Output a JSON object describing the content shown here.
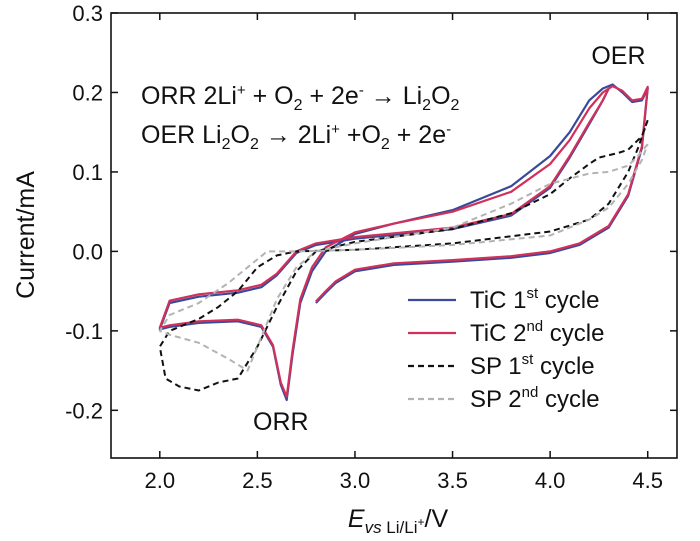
{
  "chart_data": {
    "type": "line",
    "xlabel_main": "E",
    "xlabel_sub": "vs Li/Li+",
    "xlabel_unit": "/V",
    "ylabel": "Current/mA",
    "xlim": [
      1.75,
      4.65
    ],
    "ylim": [
      -0.26,
      0.3
    ],
    "x_ticks": [
      "2.0",
      "2.5",
      "3.0",
      "3.5",
      "4.0",
      "4.5"
    ],
    "y_ticks": [
      "-0.2",
      "-0.1",
      "0.0",
      "0.1",
      "0.2",
      "0.3"
    ],
    "grid": false,
    "legend_position": "bottom-right",
    "equations": [
      {
        "label": "ORR",
        "lhs": "2Li+ + O2 + 2e-",
        "arrow": "→",
        "rhs": "Li2O2"
      },
      {
        "label": "OER",
        "lhs": "Li2O2",
        "arrow": "→",
        "rhs": "2Li+ +O2 + 2e-"
      }
    ],
    "annotations": [
      {
        "text": "OER",
        "x": 4.35,
        "y": 0.236
      },
      {
        "text": "ORR",
        "x": 2.62,
        "y": -0.225
      }
    ],
    "series": [
      {
        "name": "TiC 1st cycle",
        "name_base": "TiC 1",
        "name_sup": "st",
        "name_tail": " cycle",
        "color": "#3a4a9a",
        "dash": "solid",
        "points": [
          [
            2.8,
            -0.065
          ],
          [
            2.85,
            -0.052
          ],
          [
            2.9,
            -0.04
          ],
          [
            3.0,
            -0.025
          ],
          [
            3.2,
            -0.017
          ],
          [
            3.5,
            -0.013
          ],
          [
            3.8,
            -0.008
          ],
          [
            4.0,
            -0.002
          ],
          [
            4.15,
            0.008
          ],
          [
            4.3,
            0.03
          ],
          [
            4.4,
            0.07
          ],
          [
            4.47,
            0.13
          ],
          [
            4.5,
            0.205
          ],
          [
            4.47,
            0.19
          ],
          [
            4.42,
            0.188
          ],
          [
            4.37,
            0.2
          ],
          [
            4.32,
            0.21
          ],
          [
            4.27,
            0.205
          ],
          [
            4.2,
            0.19
          ],
          [
            4.1,
            0.15
          ],
          [
            4.0,
            0.12
          ],
          [
            3.8,
            0.082
          ],
          [
            3.5,
            0.052
          ],
          [
            3.2,
            0.035
          ],
          [
            3.0,
            0.022
          ],
          [
            2.85,
            0.0
          ],
          [
            2.78,
            -0.025
          ],
          [
            2.72,
            -0.065
          ],
          [
            2.68,
            -0.13
          ],
          [
            2.65,
            -0.187
          ],
          [
            2.62,
            -0.168
          ],
          [
            2.58,
            -0.12
          ],
          [
            2.52,
            -0.095
          ],
          [
            2.4,
            -0.088
          ],
          [
            2.2,
            -0.09
          ],
          [
            2.05,
            -0.095
          ],
          [
            2.0,
            -0.098
          ],
          [
            2.05,
            -0.065
          ],
          [
            2.2,
            -0.057
          ],
          [
            2.4,
            -0.052
          ],
          [
            2.52,
            -0.045
          ],
          [
            2.6,
            -0.03
          ],
          [
            2.7,
            -0.002
          ],
          [
            2.8,
            0.008
          ],
          [
            3.0,
            0.016
          ],
          [
            3.5,
            0.028
          ],
          [
            3.8,
            0.045
          ],
          [
            4.0,
            0.08
          ],
          [
            4.1,
            0.118
          ],
          [
            4.2,
            0.16
          ],
          [
            4.27,
            0.19
          ],
          [
            4.3,
            0.205
          ]
        ]
      },
      {
        "name": "TiC 2nd cycle",
        "name_base": "TiC 2",
        "name_sup": "nd",
        "name_tail": " cycle",
        "color": "#d0305a",
        "dash": "solid",
        "points": [
          [
            2.8,
            -0.063
          ],
          [
            2.85,
            -0.05
          ],
          [
            2.9,
            -0.038
          ],
          [
            3.0,
            -0.023
          ],
          [
            3.2,
            -0.015
          ],
          [
            3.5,
            -0.011
          ],
          [
            3.8,
            -0.006
          ],
          [
            4.0,
            0.0
          ],
          [
            4.15,
            0.01
          ],
          [
            4.3,
            0.032
          ],
          [
            4.4,
            0.072
          ],
          [
            4.47,
            0.132
          ],
          [
            4.5,
            0.207
          ],
          [
            4.47,
            0.192
          ],
          [
            4.42,
            0.19
          ],
          [
            4.37,
            0.202
          ],
          [
            4.32,
            0.208
          ],
          [
            4.27,
            0.2
          ],
          [
            4.2,
            0.18
          ],
          [
            4.1,
            0.14
          ],
          [
            4.0,
            0.11
          ],
          [
            3.8,
            0.075
          ],
          [
            3.5,
            0.05
          ],
          [
            3.2,
            0.035
          ],
          [
            3.0,
            0.024
          ],
          [
            2.85,
            0.005
          ],
          [
            2.78,
            -0.02
          ],
          [
            2.72,
            -0.06
          ],
          [
            2.68,
            -0.125
          ],
          [
            2.65,
            -0.183
          ],
          [
            2.62,
            -0.165
          ],
          [
            2.58,
            -0.118
          ],
          [
            2.52,
            -0.093
          ],
          [
            2.4,
            -0.086
          ],
          [
            2.2,
            -0.088
          ],
          [
            2.05,
            -0.093
          ],
          [
            2.0,
            -0.096
          ],
          [
            2.05,
            -0.062
          ],
          [
            2.2,
            -0.054
          ],
          [
            2.4,
            -0.049
          ],
          [
            2.52,
            -0.042
          ],
          [
            2.6,
            -0.028
          ],
          [
            2.7,
            0.0
          ],
          [
            2.8,
            0.01
          ],
          [
            3.0,
            0.018
          ],
          [
            3.5,
            0.03
          ],
          [
            3.8,
            0.047
          ],
          [
            4.0,
            0.082
          ],
          [
            4.1,
            0.12
          ],
          [
            4.2,
            0.162
          ],
          [
            4.27,
            0.19
          ],
          [
            4.3,
            0.205
          ]
        ]
      },
      {
        "name": "SP 1st cycle",
        "name_base": "SP 1",
        "name_sup": "st",
        "name_tail": " cycle",
        "color": "#111111",
        "dash": "dashed",
        "points": [
          [
            4.5,
            0.165
          ],
          [
            4.47,
            0.145
          ],
          [
            4.4,
            0.128
          ],
          [
            4.35,
            0.124
          ],
          [
            4.25,
            0.118
          ],
          [
            4.2,
            0.11
          ],
          [
            4.1,
            0.092
          ],
          [
            4.0,
            0.072
          ],
          [
            3.8,
            0.048
          ],
          [
            3.5,
            0.028
          ],
          [
            3.0,
            0.012
          ],
          [
            2.8,
            0.0
          ],
          [
            2.7,
            -0.025
          ],
          [
            2.6,
            -0.07
          ],
          [
            2.5,
            -0.12
          ],
          [
            2.4,
            -0.16
          ],
          [
            2.3,
            -0.165
          ],
          [
            2.2,
            -0.175
          ],
          [
            2.1,
            -0.17
          ],
          [
            2.03,
            -0.16
          ],
          [
            2.0,
            -0.12
          ],
          [
            2.05,
            -0.1
          ],
          [
            2.2,
            -0.085
          ],
          [
            2.3,
            -0.07
          ],
          [
            2.4,
            -0.05
          ],
          [
            2.5,
            -0.02
          ],
          [
            2.6,
            -0.005
          ],
          [
            2.7,
            0.0
          ],
          [
            3.0,
            0.002
          ],
          [
            3.5,
            0.01
          ],
          [
            4.0,
            0.025
          ],
          [
            4.2,
            0.04
          ],
          [
            4.3,
            0.06
          ],
          [
            4.4,
            0.1
          ],
          [
            4.45,
            0.13
          ],
          [
            4.5,
            0.165
          ]
        ]
      },
      {
        "name": "SP 2nd cycle",
        "name_base": "SP 2",
        "name_sup": "nd",
        "name_tail": " cycle",
        "color": "#b3b3b3",
        "dash": "dashed",
        "points": [
          [
            4.5,
            0.135
          ],
          [
            4.45,
            0.12
          ],
          [
            4.4,
            0.108
          ],
          [
            4.3,
            0.1
          ],
          [
            4.2,
            0.098
          ],
          [
            4.0,
            0.085
          ],
          [
            3.8,
            0.06
          ],
          [
            3.5,
            0.03
          ],
          [
            3.0,
            0.01
          ],
          [
            2.8,
            0.0
          ],
          [
            2.7,
            -0.02
          ],
          [
            2.6,
            -0.06
          ],
          [
            2.5,
            -0.12
          ],
          [
            2.45,
            -0.15
          ],
          [
            2.35,
            -0.135
          ],
          [
            2.2,
            -0.115
          ],
          [
            2.05,
            -0.105
          ],
          [
            2.0,
            -0.1
          ],
          [
            2.05,
            -0.08
          ],
          [
            2.2,
            -0.065
          ],
          [
            2.35,
            -0.04
          ],
          [
            2.45,
            -0.02
          ],
          [
            2.55,
            0.0
          ],
          [
            2.7,
            0.0
          ],
          [
            3.0,
            0.002
          ],
          [
            3.5,
            0.008
          ],
          [
            4.0,
            0.02
          ],
          [
            4.2,
            0.04
          ],
          [
            4.3,
            0.055
          ],
          [
            4.4,
            0.085
          ],
          [
            4.47,
            0.115
          ],
          [
            4.5,
            0.135
          ]
        ]
      }
    ]
  }
}
